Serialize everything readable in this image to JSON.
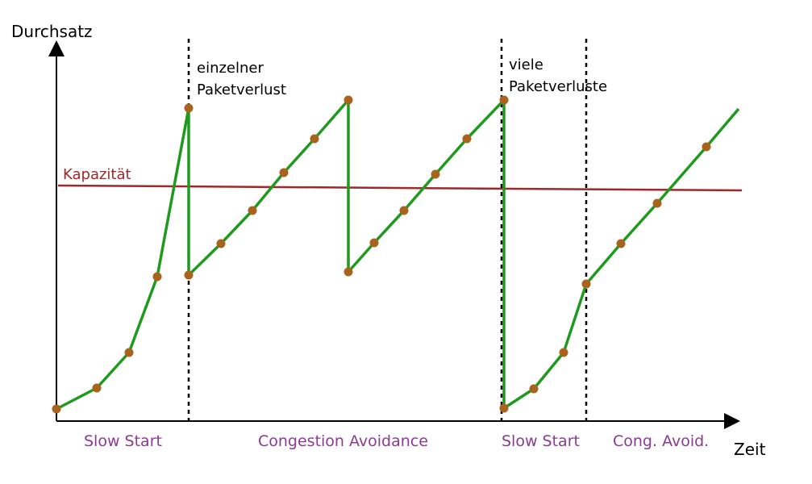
{
  "axes": {
    "y_label": "Durchsatz",
    "x_label": "Zeit"
  },
  "capacity": {
    "label": "Kapazität",
    "color": "#a0282a"
  },
  "annotations": {
    "single_loss_line1": "einzelner",
    "single_loss_line2": "Paketverlust",
    "multi_loss_line1": "viele",
    "multi_loss_line2": "Paketverluste"
  },
  "phases": [
    {
      "label": "Slow Start"
    },
    {
      "label": "Congestion Avoidance"
    },
    {
      "label": "Slow Start"
    },
    {
      "label": "Cong. Avoid."
    }
  ],
  "colors": {
    "curve": "#1f9a1f",
    "points": "#a8641e",
    "phase_label": "#8b3a93",
    "axis": "#000000"
  }
}
